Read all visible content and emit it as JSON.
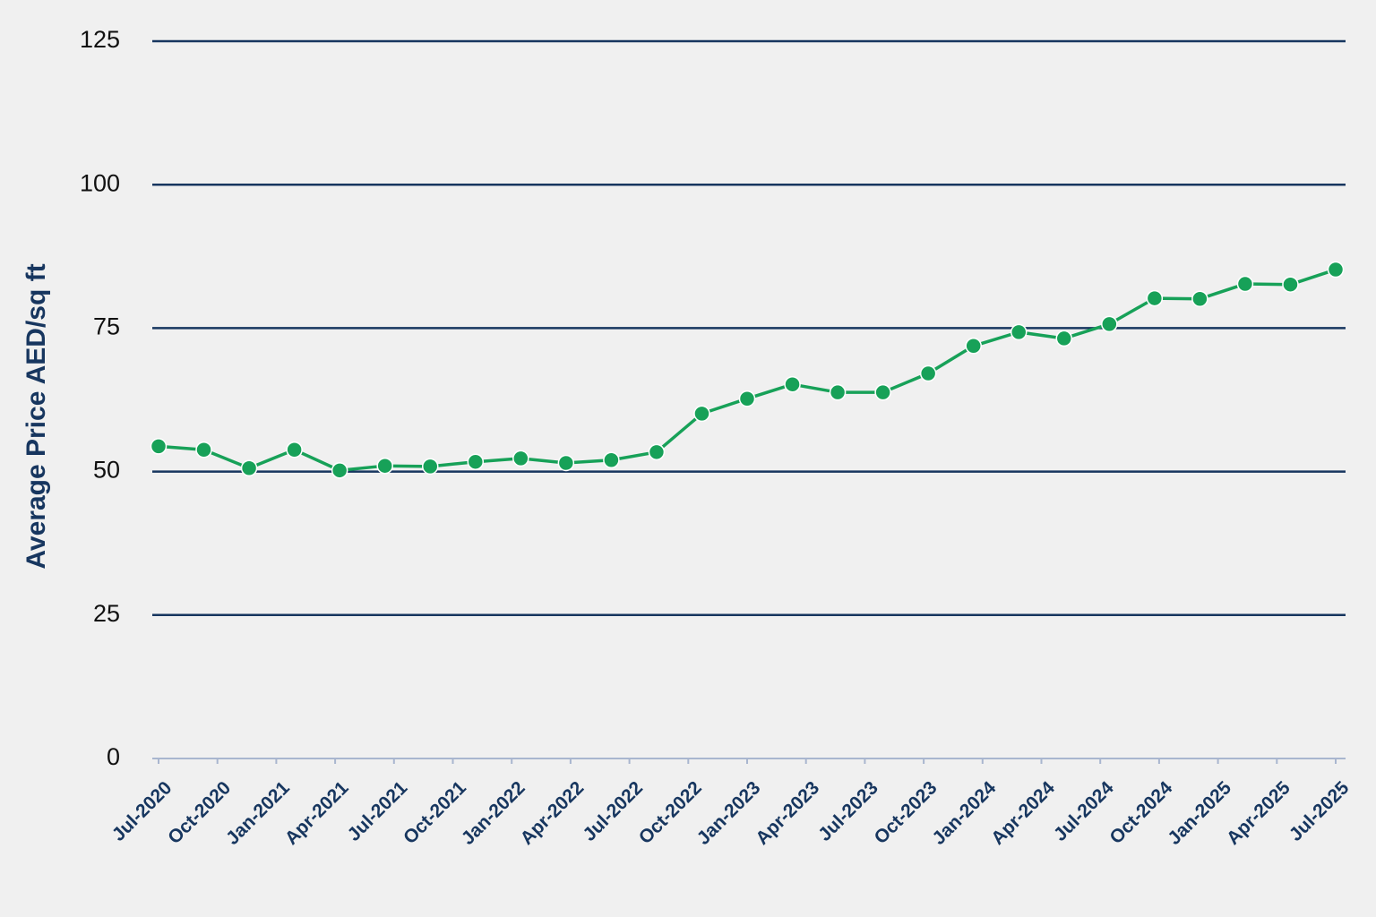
{
  "chart_data": {
    "type": "line",
    "y_label": "Average Price AED/sq ft",
    "x": [
      0,
      1,
      2,
      3,
      4,
      5,
      6,
      7,
      8,
      9,
      10,
      11,
      12,
      13,
      14,
      15,
      16,
      17,
      18,
      19,
      20,
      21,
      22,
      23,
      24,
      25,
      26
    ],
    "xlim": [
      0,
      26
    ],
    "xticks": [
      {
        "value": 0,
        "label": "Jul-2020"
      },
      {
        "value": 1.3,
        "label": "Oct-2020"
      },
      {
        "value": 2.6,
        "label": "Jan-2021"
      },
      {
        "value": 3.9,
        "label": "Apr-2021"
      },
      {
        "value": 5.2,
        "label": "Jul-2021"
      },
      {
        "value": 6.5,
        "label": "Oct-2021"
      },
      {
        "value": 7.8,
        "label": "Jan-2022"
      },
      {
        "value": 9.1,
        "label": "Apr-2022"
      },
      {
        "value": 10.4,
        "label": "Jul-2022"
      },
      {
        "value": 11.7,
        "label": "Oct-2022"
      },
      {
        "value": 13,
        "label": "Jan-2023"
      },
      {
        "value": 14.3,
        "label": "Apr-2023"
      },
      {
        "value": 15.6,
        "label": "Jul-2023"
      },
      {
        "value": 16.9,
        "label": "Oct-2023"
      },
      {
        "value": 18.2,
        "label": "Jan-2024"
      },
      {
        "value": 19.5,
        "label": "Apr-2024"
      },
      {
        "value": 20.8,
        "label": "Jul-2024"
      },
      {
        "value": 22.1,
        "label": "Oct-2024"
      },
      {
        "value": 23.4,
        "label": "Jan-2025"
      },
      {
        "value": 24.7,
        "label": "Apr-2025"
      },
      {
        "value": 26,
        "label": "Jul-2025"
      }
    ],
    "series": [
      {
        "color": "#17a158",
        "values": [
          54.4,
          53.8,
          50.6,
          53.8,
          50.2,
          51.0,
          50.9,
          51.7,
          52.3,
          51.5,
          52.0,
          53.4,
          60.1,
          62.7,
          65.2,
          63.8,
          63.8,
          67.1,
          71.9,
          74.3,
          73.2,
          75.7,
          80.2,
          80.1,
          82.7,
          82.6,
          85.2
        ]
      }
    ],
    "ylim": [
      0,
      125
    ],
    "yticks": [
      0,
      25,
      50,
      75,
      100,
      125
    ],
    "grid": true,
    "grid_color": "#17365f"
  }
}
